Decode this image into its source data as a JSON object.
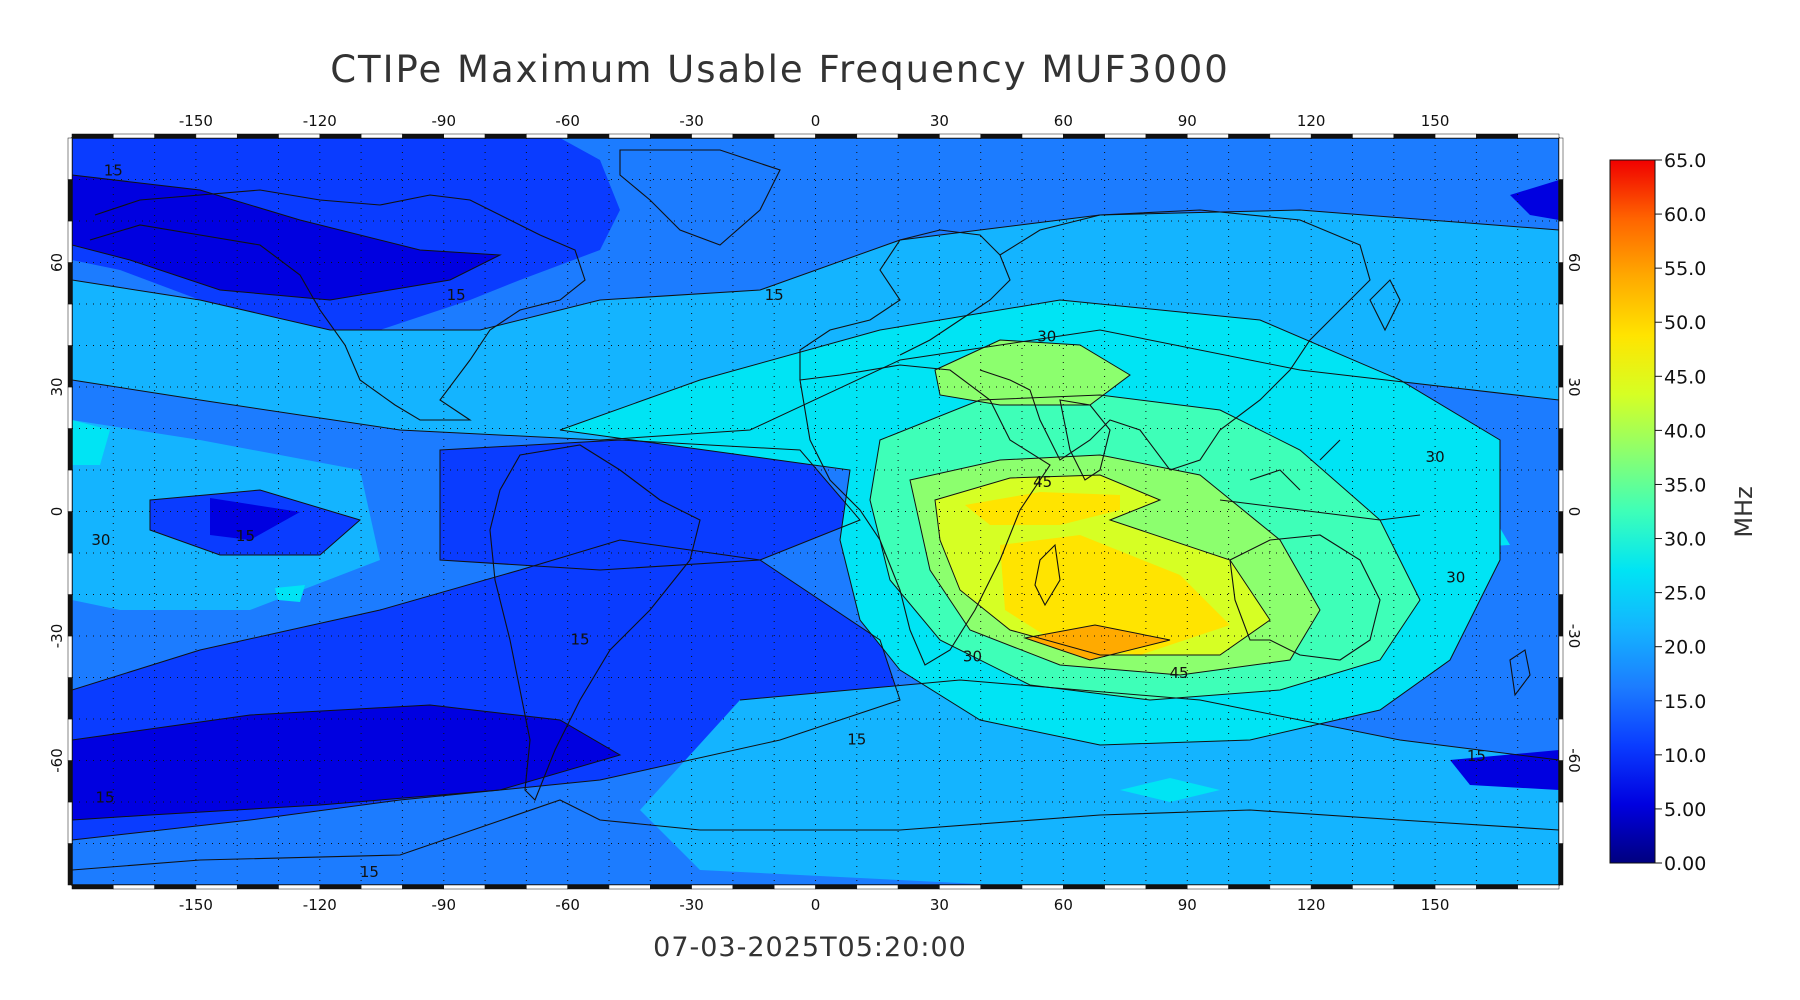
{
  "title": "CTIPe Maximum Usable Frequency MUF3000",
  "timestamp": "07-03-2025T05:20:00",
  "colorbar": {
    "unit": "MHz",
    "levels": [
      "0.00",
      "5.00",
      "10.0",
      "15.0",
      "20.0",
      "25.0",
      "30.0",
      "35.0",
      "40.0",
      "45.0",
      "50.0",
      "55.0",
      "60.0",
      "65.0"
    ],
    "colors": [
      "#00007f",
      "#0000e0",
      "#0a3cff",
      "#1c7cff",
      "#14b4ff",
      "#00e4f4",
      "#3effb8",
      "#8cff6e",
      "#d6ff24",
      "#ffe400",
      "#ffaa00",
      "#ff6400",
      "#f00000"
    ]
  },
  "axes": {
    "lon_ticks": [
      "-150",
      "-120",
      "-90",
      "-60",
      "-30",
      "0",
      "30",
      "60",
      "90",
      "120",
      "150"
    ],
    "lat_ticks": [
      "60",
      "30",
      "0",
      "-30",
      "-60"
    ]
  },
  "contour_labels": [
    {
      "text": "15",
      "lon": -170,
      "lat": 82
    },
    {
      "text": "15",
      "lon": -87,
      "lat": 52
    },
    {
      "text": "15",
      "lon": -10,
      "lat": 52
    },
    {
      "text": "30",
      "lon": 56,
      "lat": 42
    },
    {
      "text": "30",
      "lon": 150,
      "lat": 13
    },
    {
      "text": "15",
      "lon": -138,
      "lat": -6
    },
    {
      "text": "30",
      "lon": -173,
      "lat": -7
    },
    {
      "text": "45",
      "lon": 55,
      "lat": 7
    },
    {
      "text": "30",
      "lon": 155,
      "lat": -16
    },
    {
      "text": "45",
      "lon": 88,
      "lat": -39
    },
    {
      "text": "30",
      "lon": 38,
      "lat": -35
    },
    {
      "text": "15",
      "lon": -57,
      "lat": -31
    },
    {
      "text": "15",
      "lon": 10,
      "lat": -55
    },
    {
      "text": "15",
      "lon": 160,
      "lat": -59
    },
    {
      "text": "15",
      "lon": -172,
      "lat": -69
    },
    {
      "text": "15",
      "lon": -108,
      "lat": -87
    }
  ]
}
